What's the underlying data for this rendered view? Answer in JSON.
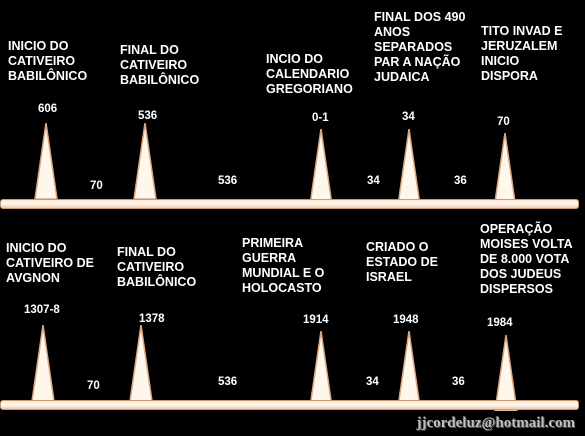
{
  "timeline_top": {
    "events": [
      {
        "label": "INICIO DO\nCATIVEIRO\nBABILÔNICO",
        "year": "606"
      },
      {
        "label": "FINAL DO\nCATIVEIRO\nBABILÔNICO",
        "year": "536"
      },
      {
        "label": "INCIO DO\nCALENDARIO\nGREGORIANO",
        "year": "0-1"
      },
      {
        "label": "FINAL DOS 490\nANOS\nSEPARADOS\nPAR A NAÇÃO\nJUDAICA",
        "year": "34"
      },
      {
        "label": "TITO INVAD E\nJERUZALEM\nINICIO\nDISPORA",
        "year": "70"
      }
    ],
    "gaps": [
      "70",
      "536",
      "34",
      "36"
    ]
  },
  "timeline_bottom": {
    "events": [
      {
        "label": "INICIO DO\nCATIVEIRO DE\nAVGNON",
        "year": "1307-8"
      },
      {
        "label": "FINAL DO\nCATIVEIRO\nBABILÔNICO",
        "year": "1378"
      },
      {
        "label": "PRIMEIRA\nGUERRA\nMUNDIAL E O\nHOLOCASTO",
        "year": "1914"
      },
      {
        "label": "CRIADO O\nESTADO DE\nISRAEL",
        "year": "1948"
      },
      {
        "label": "OPERAÇÃO\nMOISES VOLTA\nDE 8.000  VOTA\nDOS JUDEUS\nDISPERSOS",
        "year": "1984"
      }
    ],
    "gaps": [
      "70",
      "536",
      "34",
      "36"
    ]
  },
  "credit": "jjcordeluz@hotmail.com",
  "colors": {
    "background": "#000000",
    "text": "#ffffff",
    "marker_fill": "#fff6ec",
    "marker_stroke": "#d9a77f"
  }
}
